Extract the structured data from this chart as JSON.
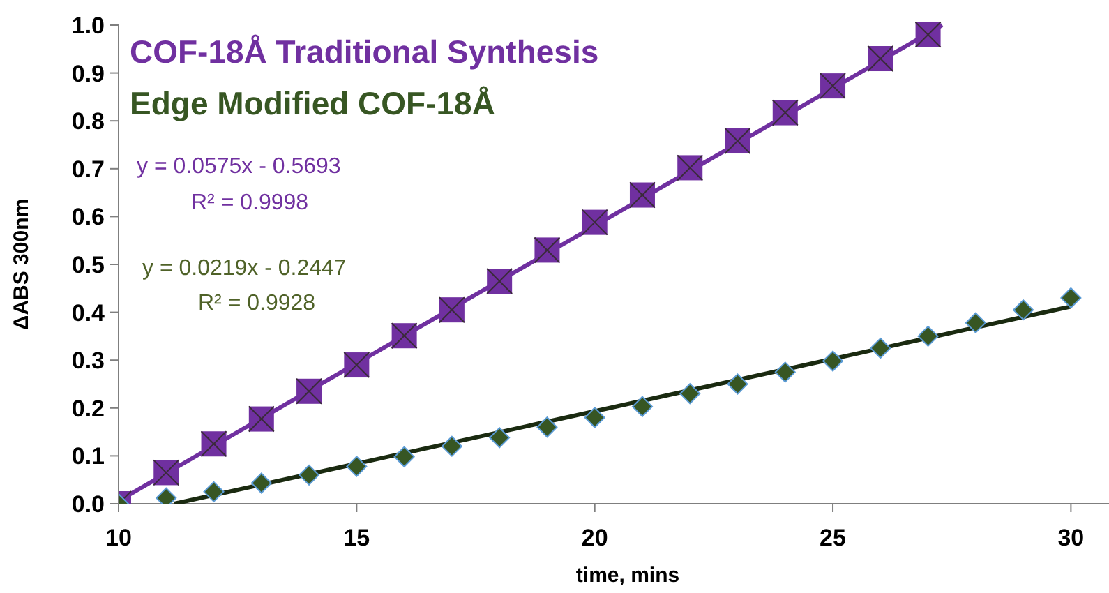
{
  "chart_data": {
    "type": "scatter",
    "xlabel": "time, mins",
    "ylabel": "ΔABS 300nm",
    "annotations": [
      "y = 0.0575x - 0.5693",
      "R² = 0.9998",
      "y = 0.0219x - 0.2447",
      "R² = 0.9928"
    ],
    "series": [
      {
        "name": "COF-18Å Traditional Synthesis",
        "color": "#7030a0",
        "marker": "square",
        "x": [
          10,
          11,
          12,
          13,
          14,
          15,
          16,
          17,
          18,
          19,
          20,
          21,
          22,
          23,
          24,
          25,
          26,
          27
        ],
        "values": [
          0,
          0.065,
          0.125,
          0.177,
          0.235,
          0.29,
          0.351,
          0.405,
          0.465,
          0.53,
          0.588,
          0.645,
          0.702,
          0.758,
          0.817,
          0.873,
          0.93,
          0.98
        ]
      },
      {
        "name": "Edge Modified COF-18Å",
        "color": "#375623",
        "marker": "diamond",
        "x": [
          10,
          11,
          12,
          13,
          14,
          15,
          16,
          17,
          18,
          19,
          20,
          21,
          22,
          23,
          24,
          25,
          26,
          27,
          28,
          29,
          30
        ],
        "values": [
          0,
          0.012,
          0.025,
          0.043,
          0.06,
          0.078,
          0.098,
          0.12,
          0.138,
          0.16,
          0.18,
          0.203,
          0.23,
          0.25,
          0.275,
          0.298,
          0.325,
          0.35,
          0.378,
          0.405,
          0.43
        ]
      },
      {
        "type": "line",
        "color": "#7030a0",
        "marker": "none",
        "x": [
          10,
          27.3
        ],
        "values": [
          0.006,
          1.0
        ]
      },
      {
        "type": "line",
        "color": "#1a2a10",
        "marker": "none",
        "x": [
          11.17,
          30
        ],
        "values": [
          0,
          0.412
        ]
      }
    ],
    "xlim": [
      10,
      30.8
    ],
    "xticks": [
      10,
      15,
      20,
      25,
      30
    ],
    "ylim": [
      0,
      1
    ],
    "yticks": [
      {
        "value": 0,
        "label": "0.0"
      },
      {
        "value": 0.1,
        "label": "0.1"
      },
      {
        "value": 0.2,
        "label": "0.2"
      },
      {
        "value": 0.3,
        "label": "0.3"
      },
      {
        "value": 0.4,
        "label": "0.4"
      },
      {
        "value": 0.5,
        "label": "0.5"
      },
      {
        "value": 0.6,
        "label": "0.6"
      },
      {
        "value": 0.7,
        "label": "0.7"
      },
      {
        "value": 0.8,
        "label": "0.8"
      },
      {
        "value": 0.9,
        "label": "0.9"
      },
      {
        "value": 1,
        "label": "1.0"
      }
    ],
    "grid": false,
    "legend": "top left"
  }
}
